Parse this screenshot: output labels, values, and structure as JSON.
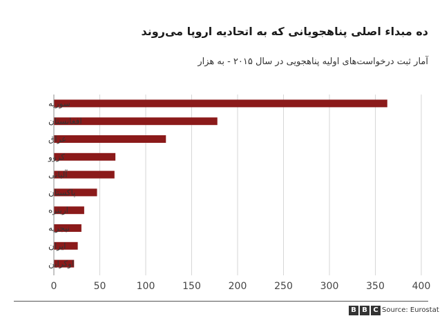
{
  "chart_data": {
    "type": "bar",
    "orientation": "horizontal",
    "title": "ده مبداء اصلی پناهجویانی که به اتحادیه اروپا می‌روند",
    "subtitle": "آمار ثبت درخواست‌های اولیه پناهجویی در سال ۲۰۱۵ - به هزار",
    "categories": [
      "سوریه",
      "افغانستان",
      "عراق",
      "کزوو",
      "آلبانی",
      "پاکستان",
      "اریتره",
      "نیجریه",
      "ایران",
      "اوکراین"
    ],
    "values": [
      363,
      178,
      122,
      67,
      66,
      47,
      33,
      30,
      26,
      22
    ],
    "xlim": [
      0,
      400
    ],
    "xticks": [
      "0",
      "50",
      "100",
      "150",
      "200",
      "250",
      "300",
      "350",
      "400"
    ],
    "grid": "vertical",
    "bar_color": "#8b1a1a"
  },
  "footer": {
    "brand_letters": [
      "B",
      "B",
      "C"
    ],
    "source": "Source: Eurostat"
  }
}
